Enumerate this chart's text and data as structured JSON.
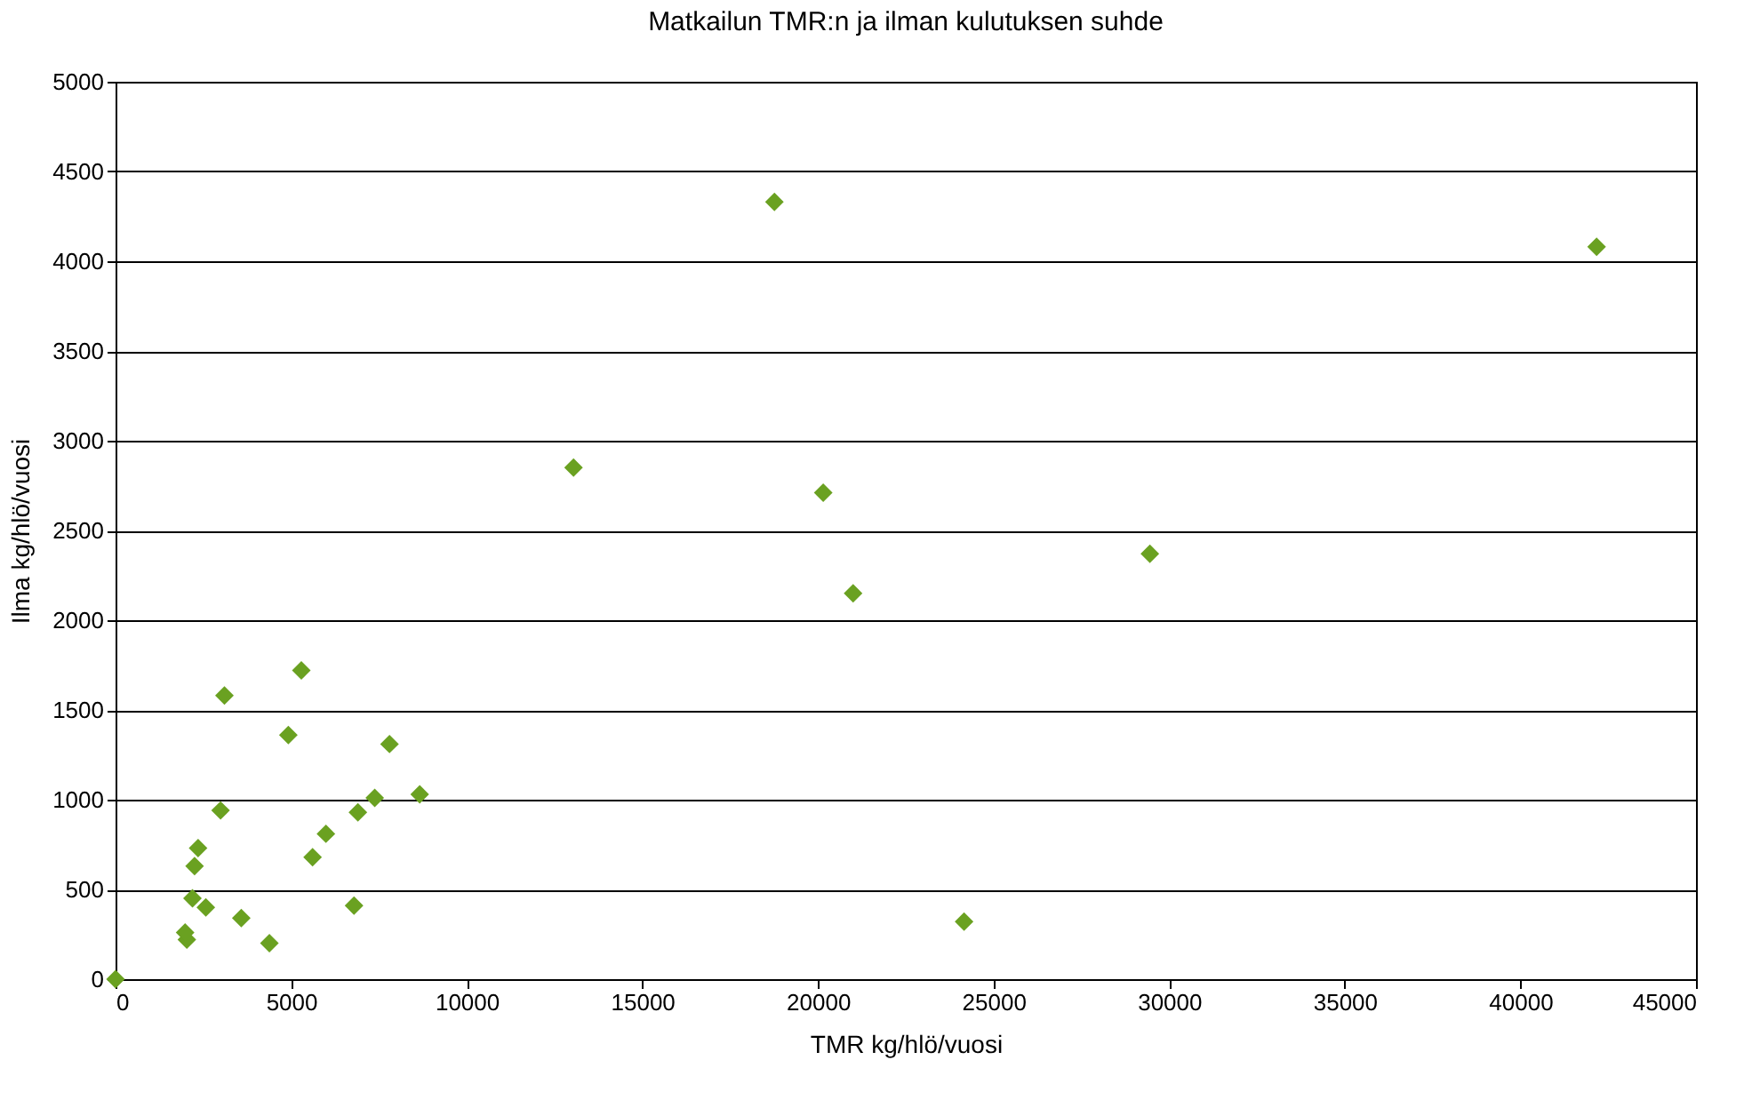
{
  "chart_data": {
    "type": "scatter",
    "title": "Matkailun TMR:n ja ilman kulutuksen suhde",
    "xlabel": "TMR kg/hlö/vuosi",
    "ylabel": "Ilma kg/hlö/vuosi",
    "x": [
      0,
      2030,
      1980,
      2190,
      2250,
      2350,
      2570,
      2990,
      3100,
      3580,
      4380,
      4920,
      5290,
      5610,
      5990,
      6790,
      6900,
      7380,
      7800,
      8660,
      13040,
      18760,
      20150,
      21000,
      24160,
      29450,
      42170
    ],
    "series": [
      {
        "color": "#6aa121",
        "values": [
          0,
          220,
          260,
          450,
          630,
          730,
          400,
          940,
          1580,
          340,
          200,
          1360,
          1720,
          680,
          810,
          410,
          930,
          1010,
          1310,
          1030,
          2850,
          4330,
          2710,
          2150,
          320,
          2370,
          4080
        ]
      }
    ],
    "xlim": [
      0,
      45000
    ],
    "xticks": [
      0,
      5000,
      10000,
      15000,
      20000,
      25000,
      30000,
      35000,
      40000,
      45000
    ],
    "ylim": [
      0,
      5000
    ],
    "yticks": [
      0,
      500,
      1000,
      1500,
      2000,
      2500,
      3000,
      3500,
      4000,
      4500,
      5000
    ],
    "grid": "y",
    "marker": "diamond"
  }
}
